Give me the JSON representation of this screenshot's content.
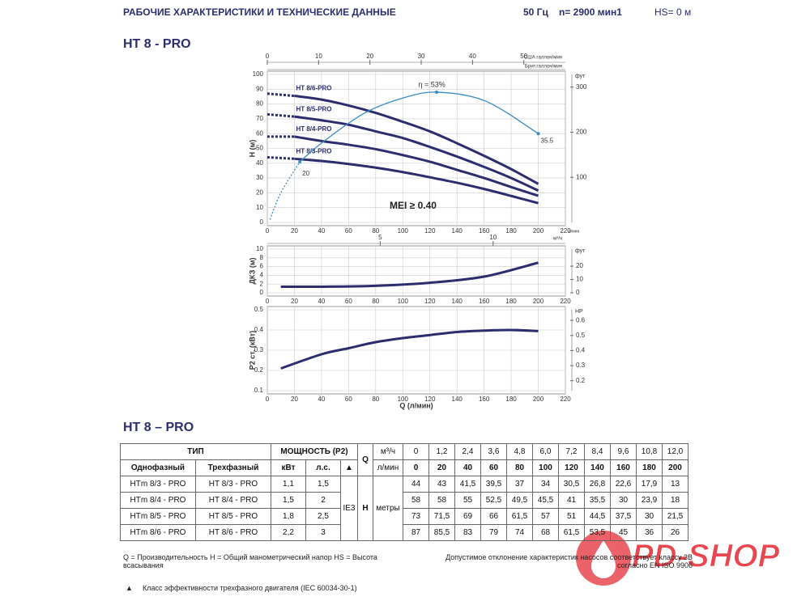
{
  "header": {
    "title": "РАБОЧИЕ ХАРАКТЕРИСТИКИ И ТЕХНИЧЕСКИЕ ДАННЫЕ",
    "frequency": "50 Гц",
    "speed": "n= 2900 мин1",
    "suction": "HS= 0 м"
  },
  "model_title": "HT 8 - PRO",
  "q_axis": {
    "label": "Q (л/мин)",
    "unit": "л/мин",
    "xlim": [
      0,
      220
    ],
    "xticks": [
      0,
      20,
      40,
      60,
      80,
      100,
      120,
      140,
      160,
      180,
      200,
      220
    ]
  },
  "head_chart": {
    "type": "line",
    "ylabel": "H (м)",
    "ylim": [
      0,
      100
    ],
    "yticks": [
      0,
      10,
      20,
      30,
      40,
      50,
      60,
      70,
      80,
      90,
      100
    ],
    "y2label": "фут",
    "y2lim": [
      0,
      328.1
    ],
    "y2ticks": [
      100,
      200,
      300
    ],
    "top_axis": {
      "label": "США галлон/мин",
      "xlim": [
        0,
        58.1
      ],
      "xticks": [
        0,
        10,
        20,
        30,
        40,
        50
      ]
    },
    "top_axis2_label": "Брит.галлон/мин",
    "x": [
      0,
      20,
      40,
      60,
      80,
      100,
      120,
      140,
      160,
      180,
      200
    ],
    "series": [
      {
        "name": "HT 8/6-PRO",
        "color": "#2b2d6e",
        "values": [
          87,
          85.5,
          83,
          79,
          74,
          68,
          61.5,
          53.5,
          45,
          36,
          26
        ]
      },
      {
        "name": "HT 8/5-PRO",
        "color": "#2b2d6e",
        "values": [
          73,
          71.5,
          69,
          66,
          61.5,
          57,
          51,
          44.5,
          37.5,
          30,
          21.5
        ]
      },
      {
        "name": "HT 8/4-PRO",
        "color": "#2b2d6e",
        "values": [
          58,
          58,
          55,
          52.5,
          49.5,
          45.5,
          41,
          35.5,
          30,
          23.9,
          18
        ]
      },
      {
        "name": "HT 8/3-PRO",
        "color": "#2b2d6e",
        "values": [
          44,
          43,
          41.5,
          39.5,
          37,
          34,
          30.5,
          26.8,
          22.6,
          17.9,
          13
        ]
      }
    ],
    "efficiency": {
      "label": "η = 53%",
      "color": "#3b8cc6",
      "x": [
        2,
        10,
        24,
        42,
        72,
        100,
        125,
        161,
        200
      ],
      "values": [
        2,
        20,
        41,
        55,
        74,
        84,
        88,
        82,
        60
      ],
      "start_label": "20",
      "end_label": "35.5"
    },
    "mei": "MEI ≥ 0.40"
  },
  "npsh_chart": {
    "type": "line",
    "ylabel": "ДКЗ (м)",
    "ylim": [
      0,
      10
    ],
    "yticks": [
      0,
      2,
      4,
      6,
      8,
      10
    ],
    "y2label": "фут",
    "y2lim": [
      0,
      32.8
    ],
    "y2ticks": [
      0,
      10,
      20
    ],
    "top_axis": {
      "label": "м³/ч",
      "xlim": [
        0,
        13.2
      ],
      "xticks": [
        5,
        10
      ]
    },
    "color": "#2b2d6e",
    "x": [
      10,
      40,
      80,
      120,
      160,
      200
    ],
    "values": [
      1.4,
      1.4,
      1.6,
      2.3,
      3.7,
      6.9
    ]
  },
  "power_chart": {
    "type": "line",
    "ylabel": "P2 ст. (кВт)",
    "ylim": [
      0.1,
      0.5
    ],
    "yticks": [
      0.1,
      0.2,
      0.3,
      0.4,
      0.5
    ],
    "y2label": "HP",
    "y2lim": [
      0.134,
      0.6705
    ],
    "y2ticks": [
      0.2,
      0.3,
      0.4,
      0.5,
      0.6
    ],
    "color": "#2b2d6e",
    "x": [
      10,
      40,
      60,
      80,
      100,
      120,
      140,
      160,
      180,
      200
    ],
    "values": [
      0.21,
      0.28,
      0.31,
      0.34,
      0.36,
      0.375,
      0.39,
      0.397,
      0.4,
      0.395
    ]
  },
  "table": {
    "title": "HT 8 – PRO",
    "type_header": "ТИП",
    "power_header": "МОЩНОСТЬ (P2)",
    "q_header": "Q",
    "m3h_unit": "м³/ч",
    "lmin_unit": "л/мин",
    "single": "Однофазный",
    "three": "Трехфазный",
    "kw": "кВт",
    "hp": "л.с.",
    "triangle": "▲",
    "m3h": [
      "0",
      "1,2",
      "2,4",
      "3,6",
      "4,8",
      "6,0",
      "7,2",
      "8,4",
      "9,6",
      "10,8",
      "12,0"
    ],
    "lmin": [
      "0",
      "20",
      "40",
      "60",
      "80",
      "100",
      "120",
      "140",
      "160",
      "180",
      "200"
    ],
    "ie": "IE3",
    "h": "H",
    "h_unit": "метры",
    "rows": [
      [
        "HTm 8/3 - PRO",
        "HT 8/3 - PRO",
        "1,1",
        "1,5",
        "44",
        "43",
        "41,5",
        "39,5",
        "37",
        "34",
        "30,5",
        "26,8",
        "22,6",
        "17,9",
        "13"
      ],
      [
        "HTm 8/4 - PRO",
        "HT 8/4 - PRO",
        "1,5",
        "2",
        "58",
        "58",
        "55",
        "52,5",
        "49,5",
        "45,5",
        "41",
        "35,5",
        "30",
        "23,9",
        "18"
      ],
      [
        "HTm 8/5 - PRO",
        "HT 8/5 - PRO",
        "1,8",
        "2,5",
        "73",
        "71,5",
        "69",
        "66",
        "61,5",
        "57",
        "51",
        "44,5",
        "37,5",
        "30",
        "21,5"
      ],
      [
        "HTm 8/6 - PRO",
        "HT 8/6 - PRO",
        "2,2",
        "3",
        "87",
        "85,5",
        "83",
        "79",
        "74",
        "68",
        "61,5",
        "53,5",
        "45",
        "36",
        "26"
      ]
    ]
  },
  "notes": {
    "definitions": "Q = Производительность H = Общий манометрический напор HS = Высота всасывания",
    "tolerance": "Допустимое отклонение характеристик насосов соответствует классу 3B согласно EN ISO 9906",
    "triangle": "▲",
    "efficiency_class": "Класс эффективности трехфазного двигателя (IEC 60034-30-1)"
  },
  "logo": "PD-SHOP"
}
